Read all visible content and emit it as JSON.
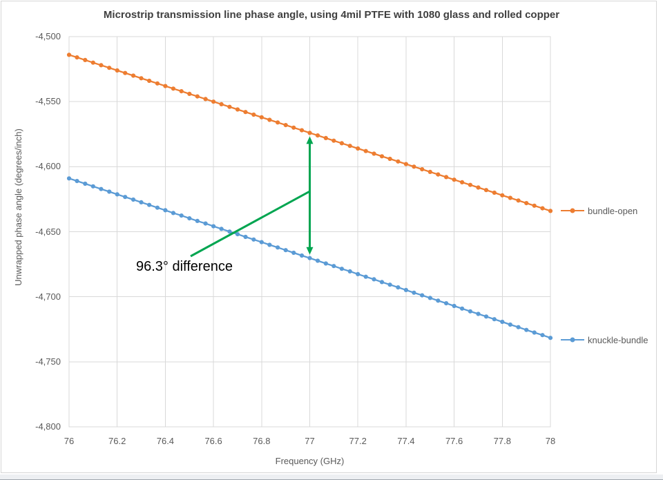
{
  "window": {
    "background": "#ffffff",
    "frame_border": "#d6d6d6",
    "bottom_strip": "#edeff2"
  },
  "chart_data": {
    "type": "line",
    "title": "Microstrip transmission line phase angle, using 4mil PTFE with 1080 glass and rolled copper",
    "xlabel": "Frequency (GHz)",
    "ylabel": "Unwrapped phase angle (degrees/inch)",
    "xlim": [
      76,
      78
    ],
    "ylim": [
      -4800,
      -4500
    ],
    "grid": true,
    "grid_color": "#d9d9d9",
    "legend_position": "right",
    "x_ticks": [
      76,
      76.2,
      76.4,
      76.6,
      76.8,
      77,
      77.2,
      77.4,
      77.6,
      77.8,
      78
    ],
    "x_tick_labels": [
      "76",
      "76.2",
      "76.4",
      "76.6",
      "76.8",
      "77",
      "77.2",
      "77.4",
      "77.6",
      "77.8",
      "78"
    ],
    "y_ticks": [
      -4500,
      -4550,
      -4600,
      -4650,
      -4700,
      -4750,
      -4800
    ],
    "y_tick_labels": [
      "-4,500",
      "-4,550",
      "-4,600",
      "-4,650",
      "-4,700",
      "-4,750",
      "-4,800"
    ],
    "x": [
      76,
      76.033,
      76.067,
      76.1,
      76.133,
      76.167,
      76.2,
      76.233,
      76.267,
      76.3,
      76.333,
      76.367,
      76.4,
      76.433,
      76.467,
      76.5,
      76.533,
      76.567,
      76.6,
      76.633,
      76.667,
      76.7,
      76.733,
      76.767,
      76.8,
      76.833,
      76.867,
      76.9,
      76.933,
      76.967,
      77,
      77.033,
      77.067,
      77.1,
      77.133,
      77.167,
      77.2,
      77.233,
      77.267,
      77.3,
      77.333,
      77.367,
      77.4,
      77.433,
      77.467,
      77.5,
      77.533,
      77.567,
      77.6,
      77.633,
      77.667,
      77.7,
      77.733,
      77.767,
      77.8,
      77.833,
      77.867,
      77.9,
      77.933,
      77.967,
      78
    ],
    "series": [
      {
        "name": "bundle-open",
        "color": "#ED7D31",
        "values": [
          -4514,
          -4516,
          -4518,
          -4520,
          -4522,
          -4524,
          -4526,
          -4528,
          -4530,
          -4532,
          -4534,
          -4536,
          -4538,
          -4540,
          -4542,
          -4544,
          -4546,
          -4548,
          -4550,
          -4552,
          -4554,
          -4556,
          -4558,
          -4560,
          -4562,
          -4564,
          -4566,
          -4568,
          -4570,
          -4572,
          -4574,
          -4576,
          -4578,
          -4580,
          -4582,
          -4584,
          -4586,
          -4588,
          -4590,
          -4592,
          -4594,
          -4596,
          -4598,
          -4600,
          -4602,
          -4604,
          -4606,
          -4608,
          -4610,
          -4612,
          -4614,
          -4616,
          -4618,
          -4620,
          -4622,
          -4624,
          -4626,
          -4628,
          -4630,
          -4632,
          -4634
        ]
      },
      {
        "name": "knuckle-bundle",
        "color": "#5B9BD5",
        "values": [
          -4609,
          -4611,
          -4613.1,
          -4615.1,
          -4617.2,
          -4619.2,
          -4621.3,
          -4623.3,
          -4625.3,
          -4627.4,
          -4629.4,
          -4631.5,
          -4633.5,
          -4635.6,
          -4637.6,
          -4639.7,
          -4641.7,
          -4643.7,
          -4645.8,
          -4647.8,
          -4649.9,
          -4651.9,
          -4654,
          -4656,
          -4658,
          -4660.1,
          -4662.1,
          -4664.2,
          -4666.2,
          -4668.3,
          -4670.3,
          -4672.3,
          -4674.4,
          -4676.4,
          -4678.5,
          -4680.5,
          -4682.6,
          -4684.6,
          -4686.6,
          -4688.7,
          -4690.7,
          -4692.8,
          -4694.8,
          -4696.9,
          -4698.9,
          -4700.9,
          -4703,
          -4705,
          -4707.1,
          -4709.1,
          -4711.2,
          -4713.2,
          -4715.2,
          -4717.3,
          -4719.3,
          -4721.4,
          -4723.4,
          -4725.5,
          -4727.5,
          -4729.5,
          -4731.6
        ]
      }
    ],
    "annotation": {
      "text": "96.3° difference",
      "color": "#000000",
      "arrow_color": "#00A550",
      "at_x": 77
    }
  }
}
